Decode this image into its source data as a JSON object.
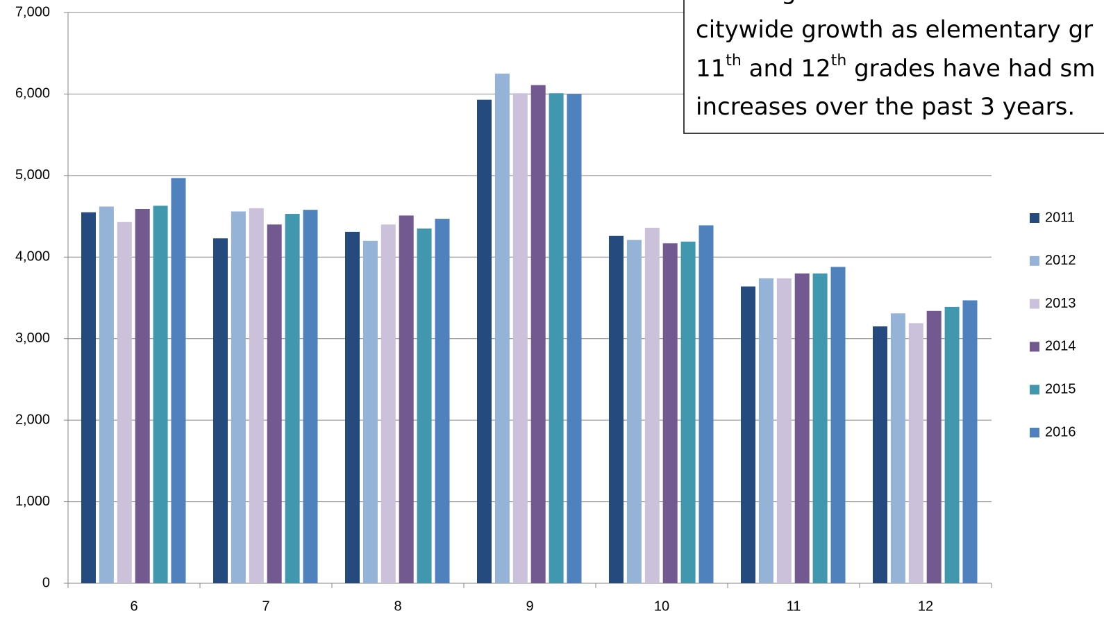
{
  "chart_data": {
    "type": "bar",
    "categories": [
      "6",
      "7",
      "8",
      "9",
      "10",
      "11",
      "12"
    ],
    "series": [
      {
        "name": "2011",
        "color": "#254a7d",
        "values": [
          4550,
          4230,
          4310,
          5930,
          4260,
          3640,
          3150
        ]
      },
      {
        "name": "2012",
        "color": "#95b3d7",
        "values": [
          4620,
          4560,
          4200,
          6250,
          4210,
          3740,
          3310
        ]
      },
      {
        "name": "2013",
        "color": "#ccc1da",
        "values": [
          4430,
          4600,
          4400,
          6010,
          4360,
          3740,
          3190
        ]
      },
      {
        "name": "2014",
        "color": "#725990",
        "values": [
          4590,
          4400,
          4510,
          6110,
          4170,
          3800,
          3340
        ]
      },
      {
        "name": "2015",
        "color": "#4198ae",
        "values": [
          4630,
          4530,
          4350,
          6010,
          4190,
          3800,
          3390
        ]
      },
      {
        "name": "2016",
        "color": "#4f81bd",
        "values": [
          4970,
          4580,
          4470,
          6000,
          4390,
          3880,
          3470
        ]
      }
    ],
    "ylim": [
      0,
      7000
    ],
    "yticks": [
      {
        "value": 0,
        "label": "0"
      },
      {
        "value": 1000,
        "label": "1,000"
      },
      {
        "value": 2000,
        "label": "2,000"
      },
      {
        "value": 3000,
        "label": "3,000"
      },
      {
        "value": 4000,
        "label": "4,000"
      },
      {
        "value": 5000,
        "label": "5,000"
      },
      {
        "value": 6000,
        "label": "6,000"
      },
      {
        "value": 7000,
        "label": "7,000"
      }
    ],
    "grid": true,
    "legend": "right",
    "annotation": [
      [
        {
          "text": "Middle grades have not seen the"
        }
      ],
      [
        {
          "text": "citywide growth as elementary gr"
        }
      ],
      [
        {
          "text": "11"
        },
        {
          "text": "th",
          "sup": true
        },
        {
          "text": " and 12"
        },
        {
          "text": "th",
          "sup": true
        },
        {
          "text": " grades have had sm"
        }
      ],
      [
        {
          "text": "increases over the past 3 years."
        }
      ]
    ]
  }
}
